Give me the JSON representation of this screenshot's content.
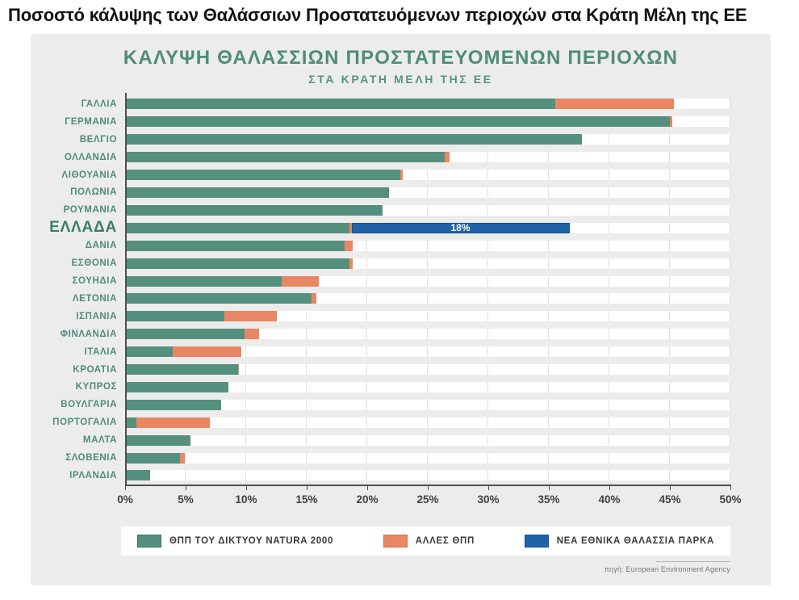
{
  "page": {
    "title": "Ποσοστό κάλυψης των Θαλάσσιων Προστατευόμενων περιοχών στα Κράτη Μέλη της ΕΕ"
  },
  "chart": {
    "title": "ΚΑΛΥΨΗ ΘΑΛΑΣΣΙΩΝ ΠΡΟΣΤΑΤΕΥΟΜΕΝΩΝ ΠΕΡΙΟΧΩΝ",
    "subtitle": "ΣΤΑ ΚΡΑΤΗ ΜΕΛΗ ΤΗΣ ΕΕ",
    "source_label": "πηγή: European Environment Agency"
  },
  "legend": {
    "items": [
      {
        "name": "natura2000",
        "label": "ΘΠΠ ΤΟΥ ΔΙΚΤΥΟΥ NATURA 2000",
        "color": "#55907E",
        "border": "#3C7263"
      },
      {
        "name": "other_mpa",
        "label": "ΑΛΛΕΣ ΘΠΠ",
        "color": "#E98663",
        "border": "#D2734F"
      },
      {
        "name": "new_parks",
        "label": "ΝΕΑ ΕΘΝΙΚΑ ΘΑΛΑΣΣΙΑ ΠΑΡΚΑ",
        "color": "#1E63A8",
        "border": "#17518C"
      }
    ]
  },
  "colors": {
    "natura": "#55907E",
    "other": "#E98663",
    "new_parks": "#1E63A8",
    "teal_text": "#4E8C7B",
    "card_bg": "#ECECEC",
    "track_bg": "#FFFFFF",
    "gridline": "#E0E0E0",
    "axis_line": "#4F4F4F"
  },
  "chart_data": {
    "type": "bar",
    "orientation": "horizontal",
    "stacked": true,
    "title": "ΚΑΛΥΨΗ ΘΑΛΑΣΣΙΩΝ ΠΡΟΣΤΑΤΕΥΟΜΕΝΩΝ ΠΕΡΙΟΧΩΝ",
    "subtitle": "ΣΤΑ ΚΡΑΤΗ ΜΕΛΗ ΤΗΣ ΕΕ",
    "unit": "%",
    "xlim": [
      0,
      50
    ],
    "x_ticks": [
      "0%",
      "5%",
      "10%",
      "15%",
      "20%",
      "25%",
      "30%",
      "35%",
      "40%",
      "45%",
      "50%"
    ],
    "grid": "vertical",
    "legend_position": "bottom",
    "series_names": [
      "ΘΠΠ ΤΟΥ ΔΙΚΤΥΟΥ NATURA 2000",
      "ΑΛΛΕΣ ΘΠΠ",
      "ΝΕΑ ΕΘΝΙΚΑ ΘΑΛΑΣΣΙΑ ΠΑΡΚΑ"
    ],
    "rows": [
      {
        "country": "ΓΑΛΛΙΑ",
        "natura2000": 35.5,
        "other": 9.8,
        "new_parks": 0
      },
      {
        "country": "ΓΕΡΜΑΝΙΑ",
        "natura2000": 45.0,
        "other": 0.2,
        "new_parks": 0
      },
      {
        "country": "ΒΕΛΓΙΟ",
        "natura2000": 37.7,
        "other": 0,
        "new_parks": 0
      },
      {
        "country": "ΟΛΛΑΝΔΙΑ",
        "natura2000": 26.4,
        "other": 0.4,
        "new_parks": 0
      },
      {
        "country": "ΛΙΘΟΥΑΝΙΑ",
        "natura2000": 22.7,
        "other": 0.2,
        "new_parks": 0
      },
      {
        "country": "ΠΟΛΩΝΙΑ",
        "natura2000": 21.8,
        "other": 0,
        "new_parks": 0
      },
      {
        "country": "ΡΟΥΜΑΝΙΑ",
        "natura2000": 21.3,
        "other": 0,
        "new_parks": 0
      },
      {
        "country": "ΕΛΛΑΔΑ",
        "natura2000": 18.5,
        "other": 0.2,
        "new_parks": 18,
        "new_parks_label": "18%",
        "highlight": true
      },
      {
        "country": "ΔΑΝΙΑ",
        "natura2000": 18.1,
        "other": 0.7,
        "new_parks": 0
      },
      {
        "country": "ΕΣΘΟΝΙΑ",
        "natura2000": 18.5,
        "other": 0.3,
        "new_parks": 0
      },
      {
        "country": "ΣΟΥΗΔΙΑ",
        "natura2000": 12.9,
        "other": 3.1,
        "new_parks": 0
      },
      {
        "country": "ΛΕΤΟΝΙΑ",
        "natura2000": 15.4,
        "other": 0.4,
        "new_parks": 0
      },
      {
        "country": "ΙΣΠΑΝΙΑ",
        "natura2000": 8.2,
        "other": 4.3,
        "new_parks": 0
      },
      {
        "country": "ΦΙΝΛΑΝΔΙΑ",
        "natura2000": 9.9,
        "other": 1.2,
        "new_parks": 0
      },
      {
        "country": "ΙΤΑΛΙΑ",
        "natura2000": 3.9,
        "other": 5.7,
        "new_parks": 0
      },
      {
        "country": "ΚΡΟΑΤΙΑ",
        "natura2000": 9.3,
        "other": 0.1,
        "new_parks": 0
      },
      {
        "country": "ΚΥΠΡΟΣ",
        "natura2000": 8.5,
        "other": 0,
        "new_parks": 0
      },
      {
        "country": "ΒΟΥΛΓΑΡΙΑ",
        "natura2000": 7.9,
        "other": 0,
        "new_parks": 0
      },
      {
        "country": "ΠΟΡΤΟΓΑΛΙΑ",
        "natura2000": 0.9,
        "other": 6.1,
        "new_parks": 0
      },
      {
        "country": "ΜΑΛΤΑ",
        "natura2000": 5.4,
        "other": 0,
        "new_parks": 0
      },
      {
        "country": "ΣΛΟΒΕΝΙΑ",
        "natura2000": 4.5,
        "other": 0.4,
        "new_parks": 0
      },
      {
        "country": "ΙΡΛΑΝΔΙΑ",
        "natura2000": 2.1,
        "other": 0,
        "new_parks": 0
      }
    ]
  }
}
